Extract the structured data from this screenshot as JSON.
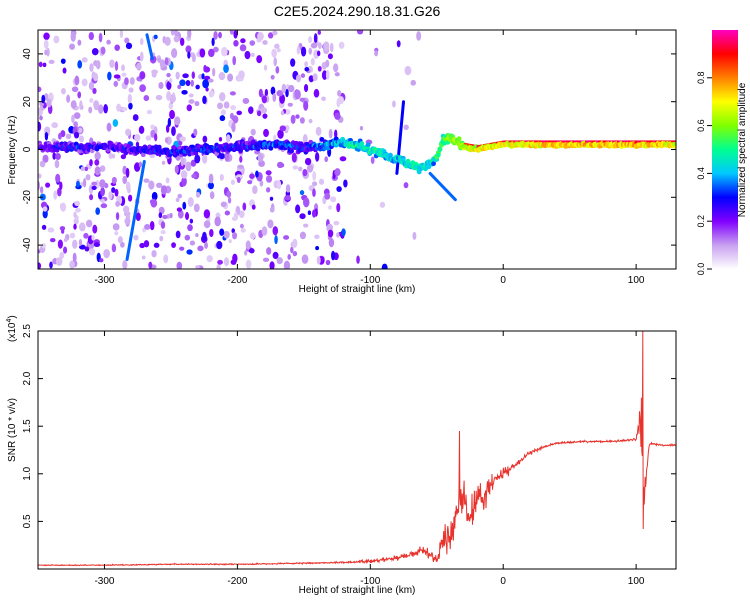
{
  "title": "C2E5.2024.290.18.31.G26",
  "chart_data": [
    {
      "type": "heatmap",
      "xlabel": "Height of straight line (km)",
      "ylabel": "Frequency (Hz)",
      "xlim": [
        -350,
        130
      ],
      "ylim": [
        -50,
        50
      ],
      "xticks": [
        -300,
        -200,
        -100,
        0,
        100
      ],
      "xtick_labels": [
        "-300",
        "-200",
        "-100",
        "0",
        "100"
      ],
      "yticks": [
        -40,
        -20,
        0,
        20,
        40
      ],
      "ytick_labels": [
        "-40",
        "-20",
        "0",
        "20",
        "40"
      ],
      "colorbar": {
        "label": "Normalized spectral amplitude",
        "range": [
          0,
          1
        ],
        "ticks": [
          0.0,
          0.2,
          0.4,
          0.6,
          0.8
        ],
        "tick_labels": [
          "0.0",
          "0.2",
          "0.4",
          "0.6",
          "0.8"
        ],
        "colormap": [
          "#ffffff",
          "#c8a0f0",
          "#8000ff",
          "#0000ff",
          "#00c8ff",
          "#00ff90",
          "#80ff00",
          "#ffff00",
          "#ff8000",
          "#ff0000",
          "#ff00c0"
        ]
      },
      "ridge": [
        {
          "x": -350,
          "y": 1,
          "a": 0.25
        },
        {
          "x": -320,
          "y": 1,
          "a": 0.3
        },
        {
          "x": -300,
          "y": 1,
          "a": 0.25
        },
        {
          "x": -250,
          "y": -1,
          "a": 0.3
        },
        {
          "x": -200,
          "y": 1,
          "a": 0.3
        },
        {
          "x": -170,
          "y": 2,
          "a": 0.35
        },
        {
          "x": -150,
          "y": 1,
          "a": 0.3
        },
        {
          "x": -120,
          "y": 3,
          "a": 0.45
        },
        {
          "x": -100,
          "y": 0,
          "a": 0.5
        },
        {
          "x": -80,
          "y": -4,
          "a": 0.45
        },
        {
          "x": -70,
          "y": -6,
          "a": 0.5
        },
        {
          "x": -60,
          "y": -8,
          "a": 0.45
        },
        {
          "x": -50,
          "y": -3,
          "a": 0.5
        },
        {
          "x": -45,
          "y": 4,
          "a": 0.55
        },
        {
          "x": -40,
          "y": 5,
          "a": 0.6
        },
        {
          "x": -30,
          "y": 1,
          "a": 0.65
        },
        {
          "x": -20,
          "y": 0,
          "a": 0.7
        },
        {
          "x": 0,
          "y": 2,
          "a": 0.7
        },
        {
          "x": 50,
          "y": 2,
          "a": 0.75
        },
        {
          "x": 100,
          "y": 2,
          "a": 0.75
        },
        {
          "x": 130,
          "y": 2,
          "a": 0.7
        }
      ],
      "streaks": [
        {
          "x0": -283,
          "y0": -46,
          "x1": -270,
          "y1": -5,
          "a": 0.35
        },
        {
          "x0": -268,
          "y0": 48,
          "x1": -264,
          "y1": 38,
          "a": 0.35
        },
        {
          "x0": -80,
          "y0": -10,
          "x1": -75,
          "y1": 20,
          "a": 0.3
        },
        {
          "x0": -55,
          "y0": -10,
          "x1": -36,
          "y1": -21,
          "a": 0.35
        }
      ]
    },
    {
      "type": "line",
      "xlabel": "Height of straight line (km)",
      "ylabel": "SNR (10 * v/v)",
      "y_multiplier_label": "(x10",
      "y_multiplier_exponent": "4",
      "y_multiplier_close": ")",
      "xlim": [
        -350,
        130
      ],
      "ylim": [
        0,
        2.5
      ],
      "xticks": [
        -300,
        -200,
        -100,
        0,
        100
      ],
      "xtick_labels": [
        "-300",
        "-200",
        "-100",
        "0",
        "100"
      ],
      "yticks": [
        0.5,
        1.0,
        1.5,
        2.0,
        2.5
      ],
      "ytick_labels": [
        "0.5",
        "1.0",
        "1.5",
        "2.0",
        "2.5"
      ],
      "color": "#e8322c",
      "series": [
        {
          "values_x": [
            -350,
            -300,
            -250,
            -200,
            -150,
            -120,
            -100,
            -90,
            -80,
            -70,
            -60,
            -55,
            -50,
            -45,
            -40,
            -35,
            -30,
            -25,
            -20,
            -15,
            -10,
            -5,
            0,
            10,
            20,
            30,
            40,
            60,
            80,
            100,
            103,
            106,
            110,
            120,
            130
          ],
          "values_y": [
            0.04,
            0.04,
            0.05,
            0.05,
            0.06,
            0.07,
            0.08,
            0.1,
            0.12,
            0.15,
            0.2,
            0.15,
            0.1,
            0.3,
            0.35,
            0.55,
            0.8,
            0.5,
            0.8,
            0.7,
            0.9,
            0.95,
            1.0,
            1.1,
            1.22,
            1.28,
            1.32,
            1.34,
            1.34,
            1.36,
            1.55,
            0.75,
            1.32,
            1.3,
            1.3
          ],
          "noise": [
            0.01,
            0.01,
            0.012,
            0.012,
            0.015,
            0.02,
            0.03,
            0.04,
            0.05,
            0.06,
            0.08,
            0.1,
            0.1,
            0.3,
            0.35,
            0.45,
            0.45,
            0.35,
            0.3,
            0.25,
            0.2,
            0.18,
            0.12,
            0.06,
            0.04,
            0.03,
            0.02,
            0.02,
            0.02,
            0.03,
            0.4,
            0.4,
            0.03,
            0.02,
            0.02
          ],
          "spikes": [
            {
              "x": 105,
              "y": 2.5
            },
            {
              "x": 104,
              "y": 1.8
            },
            {
              "x": -33,
              "y": 1.45
            },
            {
              "x": 105.5,
              "y": 0.42
            }
          ]
        }
      ]
    }
  ]
}
